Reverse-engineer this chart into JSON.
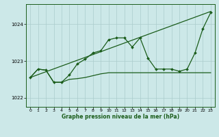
{
  "background_color": "#cce8e8",
  "grid_color": "#aacccc",
  "line_color": "#1a5c1a",
  "xlabel": "Graphe pression niveau de la mer (hPa)",
  "xlim": [
    -0.5,
    23.5
  ],
  "ylim": [
    1021.75,
    1024.55
  ],
  "yticks": [
    1022,
    1023,
    1024
  ],
  "xticks": [
    0,
    1,
    2,
    3,
    4,
    5,
    6,
    7,
    8,
    9,
    10,
    11,
    12,
    13,
    14,
    15,
    16,
    17,
    18,
    19,
    20,
    21,
    22,
    23
  ],
  "trend_x": [
    0,
    23
  ],
  "trend_y": [
    1022.55,
    1024.35
  ],
  "flat_x": [
    0,
    1,
    2,
    3,
    4,
    5,
    6,
    7,
    8,
    9,
    10,
    11,
    12,
    13,
    14,
    15,
    16,
    17,
    18,
    19,
    20,
    21,
    22,
    23
  ],
  "flat_y": [
    1022.55,
    1022.78,
    1022.75,
    1022.42,
    1022.42,
    1022.5,
    1022.52,
    1022.55,
    1022.6,
    1022.65,
    1022.68,
    1022.68,
    1022.68,
    1022.68,
    1022.68,
    1022.68,
    1022.68,
    1022.68,
    1022.68,
    1022.68,
    1022.68,
    1022.68,
    1022.68,
    1022.68
  ],
  "jagged_x": [
    0,
    1,
    2,
    3,
    4,
    5,
    6,
    7,
    8,
    9,
    10,
    11,
    12,
    13,
    14,
    15,
    16,
    17,
    18,
    19,
    20,
    21,
    22,
    23
  ],
  "jagged_y": [
    1022.55,
    1022.78,
    1022.75,
    1022.42,
    1022.42,
    1022.62,
    1022.92,
    1023.05,
    1023.22,
    1023.28,
    1023.58,
    1023.63,
    1023.63,
    1023.38,
    1023.63,
    1023.08,
    1022.78,
    1022.78,
    1022.78,
    1022.72,
    1022.78,
    1023.22,
    1023.88,
    1024.32
  ]
}
